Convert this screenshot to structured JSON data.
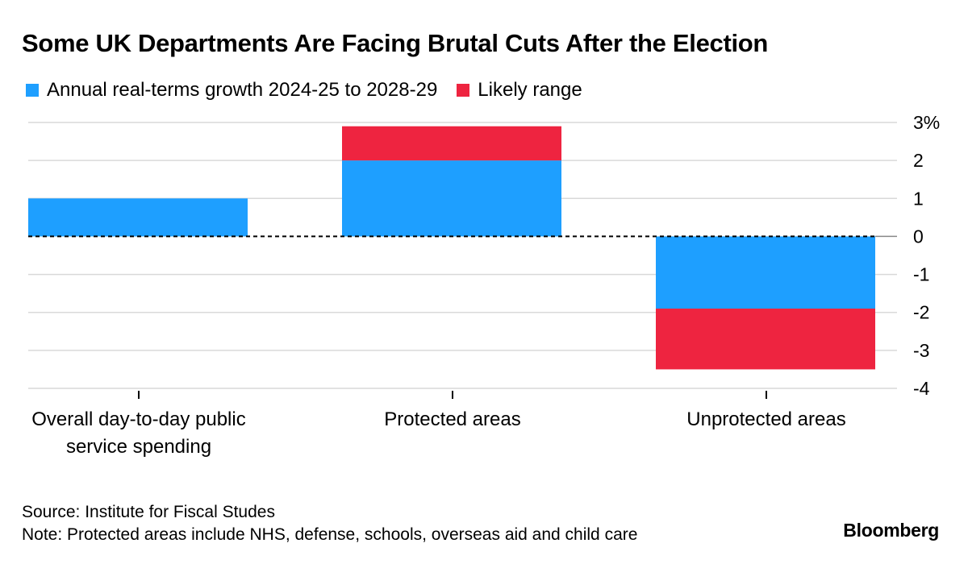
{
  "title": "Some UK Departments Are Facing Brutal Cuts After the Election",
  "colors": {
    "growth": "#1E9FFF",
    "range": "#EE2440",
    "grid": "#d9d9d9",
    "axis": "#000000"
  },
  "chart_data": {
    "type": "bar",
    "categories": [
      [
        "Overall day-to-day public",
        "service spending"
      ],
      [
        "Protected areas"
      ],
      [
        "Unprotected areas"
      ]
    ],
    "series": [
      {
        "name": "Annual real-terms growth 2024-25 to 2028-29",
        "values": [
          1.0,
          2.0,
          -1.9
        ]
      },
      {
        "name": "Likely range",
        "range": [
          null,
          [
            2.0,
            2.9
          ],
          [
            -1.9,
            -3.5
          ]
        ]
      }
    ],
    "ylim": [
      -4,
      3
    ],
    "yticks": [
      3,
      2,
      1,
      0,
      -1,
      -2,
      -3,
      -4
    ],
    "ytick_labels": [
      "3%",
      "2",
      "1",
      "0",
      "-1",
      "-2",
      "-3",
      "-4"
    ],
    "y_axis_position": "right",
    "grid": true,
    "zero_line": "dashed",
    "legend_position": "top-left"
  },
  "footer": {
    "source": "Source: Institute for Fiscal Studes",
    "note": "Note: Protected areas include NHS, defense, schools, overseas aid and child care"
  },
  "brand": "Bloomberg"
}
